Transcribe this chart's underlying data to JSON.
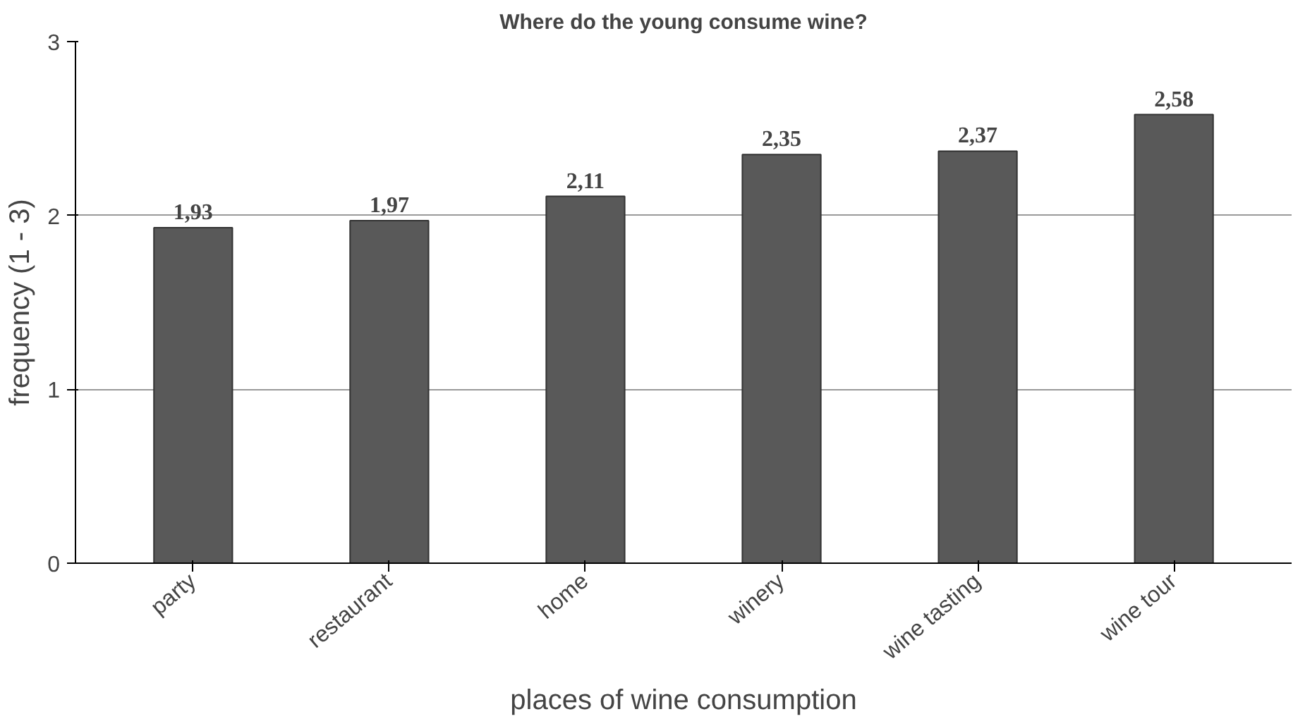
{
  "chart_data": {
    "type": "bar",
    "title": "Where do the young consume wine?",
    "xlabel": "places of wine consumption",
    "ylabel": "frequency (1 - 3)",
    "categories": [
      "party",
      "restaurant",
      "home",
      "winery",
      "wine tasting",
      "wine tour"
    ],
    "values": [
      1.93,
      1.97,
      2.11,
      2.35,
      2.37,
      2.58
    ],
    "value_labels": [
      "1,93",
      "1,97",
      "2,11",
      "2,35",
      "2,37",
      "2,58"
    ],
    "color": "#595959",
    "ylim": [
      0,
      3
    ],
    "yticks": [
      0,
      1,
      2,
      3
    ],
    "grid": "y"
  }
}
